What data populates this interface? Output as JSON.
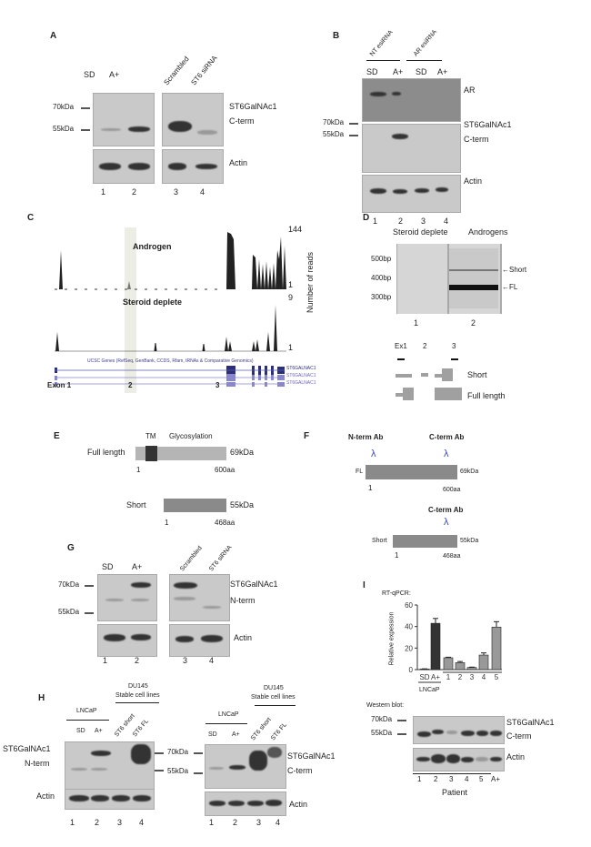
{
  "panelA": {
    "label": "A",
    "lanes_top": [
      "SD",
      "A+",
      "Scrambled",
      "ST6 siRNA"
    ],
    "mw": [
      "70kDa",
      "55kDa"
    ],
    "protein": "ST6GalNAc1",
    "term": "C-term",
    "actin": "Actin",
    "lane_numbers": [
      "1",
      "2",
      "3",
      "4"
    ]
  },
  "panelB": {
    "label": "B",
    "groups": [
      "NT esiRNA",
      "AR esiRNA"
    ],
    "lanes_top": [
      "SD",
      "A+",
      "SD",
      "A+"
    ],
    "ar": "AR",
    "mw": [
      "70kDa",
      "55kDa"
    ],
    "protein": "ST6GalNAc1",
    "term": "C-term",
    "actin": "Actin",
    "lane_numbers": [
      "1",
      "2",
      "3",
      "4"
    ]
  },
  "panelC": {
    "label": "C",
    "track1": "Androgen",
    "track2": "Steroid deplete",
    "max1": "144",
    "min1": "1",
    "max2": "9",
    "min2": "1",
    "yaxis": "Number of reads",
    "ucsc": "UCSC Genes (RefSeq, GenBank, CCDS, Rfam, tRNAs & Comparative Genomics)",
    "gene": "ST6GALNAC1",
    "exons": [
      "Exon 1",
      "2",
      "3"
    ]
  },
  "panelD": {
    "label": "D",
    "cond1": "Steroid deplete",
    "cond2": "Androgens",
    "sizes": [
      "500bp",
      "400bp",
      "300bp"
    ],
    "band_short": "Short",
    "band_fl": "FL",
    "lanes": [
      "1",
      "2"
    ],
    "exon_labels": [
      "Ex1",
      "2",
      "3"
    ],
    "iso_short": "Short",
    "iso_full": "Full length"
  },
  "panelE": {
    "label": "E",
    "tm": "TM",
    "glyco": "Glycosylation",
    "fl": "Full length",
    "fl_kda": "69kDa",
    "fl_start": "1",
    "fl_end": "600aa",
    "short": "Short",
    "short_kda": "55kDa",
    "short_start": "1",
    "short_end": "468aa"
  },
  "panelF": {
    "label": "F",
    "nterm_ab": "N-term Ab",
    "cterm_ab": "C-term Ab",
    "antibody_glyph": "λ",
    "fl": "FL",
    "fl_kda": "69kDa",
    "fl_start": "1",
    "fl_end": "600aa",
    "cterm_ab2": "C-term Ab",
    "short": "Short",
    "short_kda": "55kDa",
    "short_start": "1",
    "short_end": "468aa"
  },
  "panelG": {
    "label": "G",
    "lanes_top": [
      "SD",
      "A+",
      "Scrambled",
      "ST6 siRNA"
    ],
    "mw": [
      "70kDa",
      "55kDa"
    ],
    "protein": "ST6GalNAc1",
    "term": "N-term",
    "actin": "Actin",
    "lane_numbers": [
      "1",
      "2",
      "3",
      "4"
    ]
  },
  "panelH": {
    "label": "H",
    "group1": "LNCaP",
    "group2_l1": "DU145",
    "group2_l2": "Stable cell lines",
    "lanes_top": [
      "SD",
      "A+",
      "ST6 short",
      "ST6 FL"
    ],
    "left_protein": "ST6GalNAc1",
    "left_term": "N-term",
    "actin": "Actin",
    "mw": [
      "70kDa",
      "55kDa"
    ],
    "right_protein": "ST6GalNAc1",
    "right_term": "C-term",
    "lane_numbers": [
      "1",
      "2",
      "3",
      "4"
    ]
  },
  "panelI": {
    "label": "I",
    "title": "RT-qPCR:",
    "western": "Western blot:",
    "mw": [
      "70kDa",
      "55kDa"
    ],
    "protein": "ST6GalNAc1",
    "term": "C-term",
    "actin": "Actin",
    "lane_numbers": [
      "1",
      "2",
      "3",
      "4",
      "5",
      "A+"
    ],
    "patient": "Patient",
    "lncap": "LNCaP"
  },
  "chart_data": {
    "type": "bar",
    "title": "RT-qPCR:",
    "ylabel": "Relative expession",
    "xlabel": "",
    "categories": [
      "SD",
      "A+",
      "1",
      "2",
      "3",
      "4",
      "5"
    ],
    "values": [
      0.5,
      43,
      11,
      6.5,
      2,
      13.5,
      39.5
    ],
    "errors": [
      0.2,
      4.5,
      0.5,
      1,
      0.3,
      2,
      5
    ],
    "colors": [
      "#333333",
      "#333333",
      "#999999",
      "#999999",
      "#999999",
      "#999999",
      "#999999"
    ],
    "ylim": [
      0,
      60
    ],
    "yticks": [
      "0",
      "20",
      "40",
      "60"
    ],
    "group_labels": [
      "LNCaP"
    ]
  }
}
